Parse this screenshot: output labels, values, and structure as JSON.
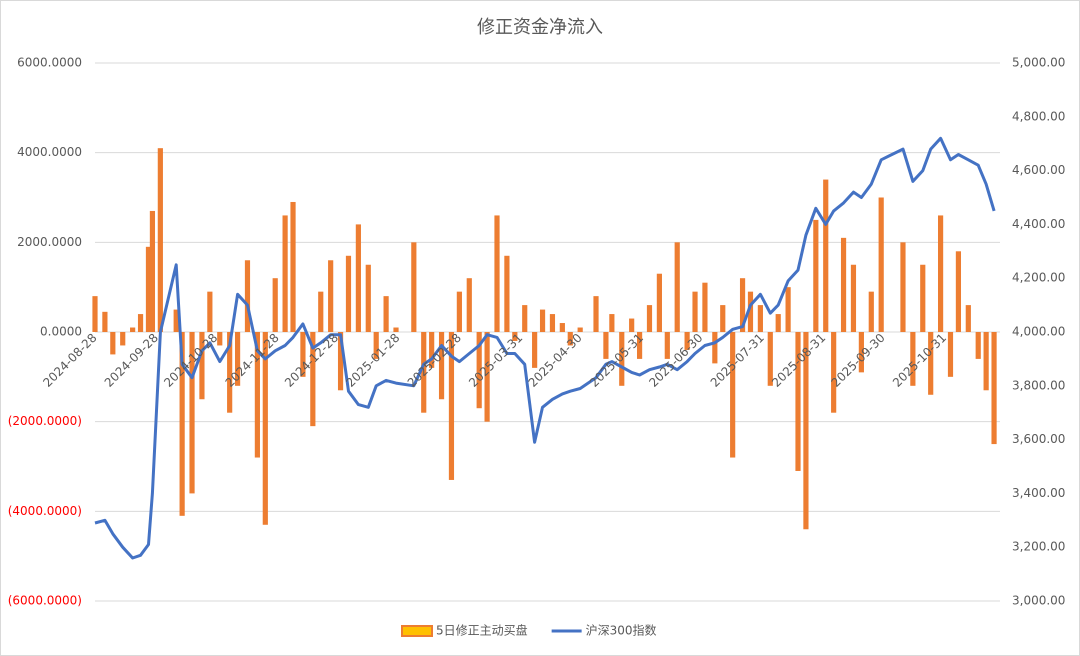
{
  "chart_data": {
    "type": "bar-line",
    "title": "修正资金净流入",
    "x": [
      "2024-08-28",
      "2024-09-02",
      "2024-09-06",
      "2024-09-11",
      "2024-09-16",
      "2024-09-20",
      "2024-09-24",
      "2024-09-26",
      "2024-09-30",
      "2024-10-08",
      "2024-10-11",
      "2024-10-16",
      "2024-10-21",
      "2024-10-25",
      "2024-10-30",
      "2024-11-04",
      "2024-11-08",
      "2024-11-13",
      "2024-11-18",
      "2024-11-22",
      "2024-11-27",
      "2024-12-02",
      "2024-12-06",
      "2024-12-11",
      "2024-12-16",
      "2024-12-20",
      "2024-12-25",
      "2024-12-30",
      "2025-01-03",
      "2025-01-08",
      "2025-01-13",
      "2025-01-17",
      "2025-01-22",
      "2025-01-27",
      "2025-02-05",
      "2025-02-10",
      "2025-02-14",
      "2025-02-19",
      "2025-02-24",
      "2025-02-28",
      "2025-03-05",
      "2025-03-10",
      "2025-03-14",
      "2025-03-19",
      "2025-03-24",
      "2025-03-28",
      "2025-04-02",
      "2025-04-07",
      "2025-04-11",
      "2025-04-16",
      "2025-04-21",
      "2025-04-25",
      "2025-04-30",
      "2025-05-08",
      "2025-05-13",
      "2025-05-16",
      "2025-05-21",
      "2025-05-26",
      "2025-05-30",
      "2025-06-04",
      "2025-06-09",
      "2025-06-13",
      "2025-06-18",
      "2025-06-23",
      "2025-06-27",
      "2025-07-02",
      "2025-07-07",
      "2025-07-11",
      "2025-07-16",
      "2025-07-21",
      "2025-07-25",
      "2025-07-30",
      "2025-08-04",
      "2025-08-08",
      "2025-08-13",
      "2025-08-18",
      "2025-08-22",
      "2025-08-27",
      "2025-09-01",
      "2025-09-05",
      "2025-09-10",
      "2025-09-15",
      "2025-09-19",
      "2025-09-24",
      "2025-09-29",
      "2025-10-10",
      "2025-10-15",
      "2025-10-20",
      "2025-10-24",
      "2025-10-29",
      "2025-11-03",
      "2025-11-07",
      "2025-11-12",
      "2025-11-17",
      "2025-11-21",
      "2025-11-25"
    ],
    "xlim": [
      "2024-08-28",
      "2025-11-28"
    ],
    "xticks": [
      "2024-08-28",
      "2024-09-28",
      "2024-10-28",
      "2024-11-28",
      "2024-12-28",
      "2025-01-28",
      "2025-02-28",
      "2025-03-31",
      "2025-04-30",
      "2025-05-31",
      "2025-06-30",
      "2025-07-31",
      "2025-08-31",
      "2025-09-30",
      "2025-10-31"
    ],
    "series": [
      {
        "name": "5日修正主动买盘",
        "type": "bar",
        "color": "#ed7d31",
        "axis": "y",
        "values": [
          800,
          450,
          -500,
          -300,
          100,
          400,
          1900,
          2700,
          4100,
          500,
          -4100,
          -3600,
          -1500,
          900,
          -300,
          -1800,
          -1200,
          1600,
          -2800,
          -4300,
          1200,
          2600,
          2900,
          -1000,
          -2100,
          900,
          1600,
          -1300,
          1700,
          2400,
          1500,
          -600,
          800,
          100,
          2000,
          -1800,
          -800,
          -1500,
          -3300,
          900,
          1200,
          -1700,
          -2000,
          2600,
          1700,
          -200,
          600,
          -800,
          500,
          400,
          200,
          -300,
          100,
          800,
          -600,
          400,
          -1200,
          300,
          -600,
          600,
          1300,
          -600,
          2000,
          -400,
          900,
          1100,
          -700,
          600,
          -2800,
          1200,
          900,
          600,
          -1200,
          400,
          1000,
          -3100,
          -4400,
          2500,
          3400,
          -1800,
          2100,
          1500,
          -900,
          900,
          3000,
          2000,
          -1200,
          1500,
          -1400,
          2600,
          -1000,
          1800,
          600,
          -600,
          -1300,
          -2500
        ]
      },
      {
        "name": "沪深300指数",
        "type": "line",
        "color": "#4472c4",
        "axis": "y2",
        "values": [
          3290,
          3300,
          3250,
          3200,
          3160,
          3170,
          3210,
          3400,
          4000,
          4250,
          3880,
          3830,
          3930,
          3960,
          3890,
          3950,
          4140,
          4100,
          3930,
          3900,
          3930,
          3950,
          3980,
          4030,
          3940,
          3960,
          3990,
          3990,
          3780,
          3730,
          3720,
          3800,
          3820,
          3810,
          3800,
          3880,
          3900,
          3950,
          3910,
          3890,
          3920,
          3950,
          3990,
          3980,
          3920,
          3920,
          3880,
          3590,
          3720,
          3750,
          3770,
          3780,
          3790,
          3830,
          3880,
          3890,
          3870,
          3850,
          3840,
          3860,
          3870,
          3880,
          3860,
          3890,
          3920,
          3950,
          3960,
          3980,
          4010,
          4020,
          4100,
          4140,
          4070,
          4100,
          4190,
          4230,
          4360,
          4460,
          4400,
          4450,
          4480,
          4520,
          4500,
          4550,
          4640,
          4680,
          4560,
          4600,
          4680,
          4720,
          4640,
          4660,
          4640,
          4620,
          4550,
          4450
        ]
      }
    ],
    "ylim": [
      -6000,
      6000
    ],
    "yticks": [
      {
        "value": -6000,
        "label": "(6000.0000)"
      },
      {
        "value": -4000,
        "label": "(4000.0000)"
      },
      {
        "value": -2000,
        "label": "(2000.0000)"
      },
      {
        "value": 0,
        "label": "0.0000"
      },
      {
        "value": 2000,
        "label": "2000.0000"
      },
      {
        "value": 4000,
        "label": "4000.0000"
      },
      {
        "value": 6000,
        "label": "6000.0000"
      }
    ],
    "negative_label_color": "#ff0000",
    "y2lim": [
      3000,
      5000
    ],
    "y2ticks": [
      {
        "value": 3000,
        "label": "3,000.00"
      },
      {
        "value": 3200,
        "label": "3,200.00"
      },
      {
        "value": 3400,
        "label": "3,400.00"
      },
      {
        "value": 3600,
        "label": "3,600.00"
      },
      {
        "value": 3800,
        "label": "3,800.00"
      },
      {
        "value": 4000,
        "label": "4,000.00"
      },
      {
        "value": 4200,
        "label": "4,200.00"
      },
      {
        "value": 4400,
        "label": "4,400.00"
      },
      {
        "value": 4600,
        "label": "4,600.00"
      },
      {
        "value": 4800,
        "label": "4,800.00"
      },
      {
        "value": 5000,
        "label": "5,000.00"
      }
    ],
    "grid": true,
    "legend": "bottom"
  }
}
